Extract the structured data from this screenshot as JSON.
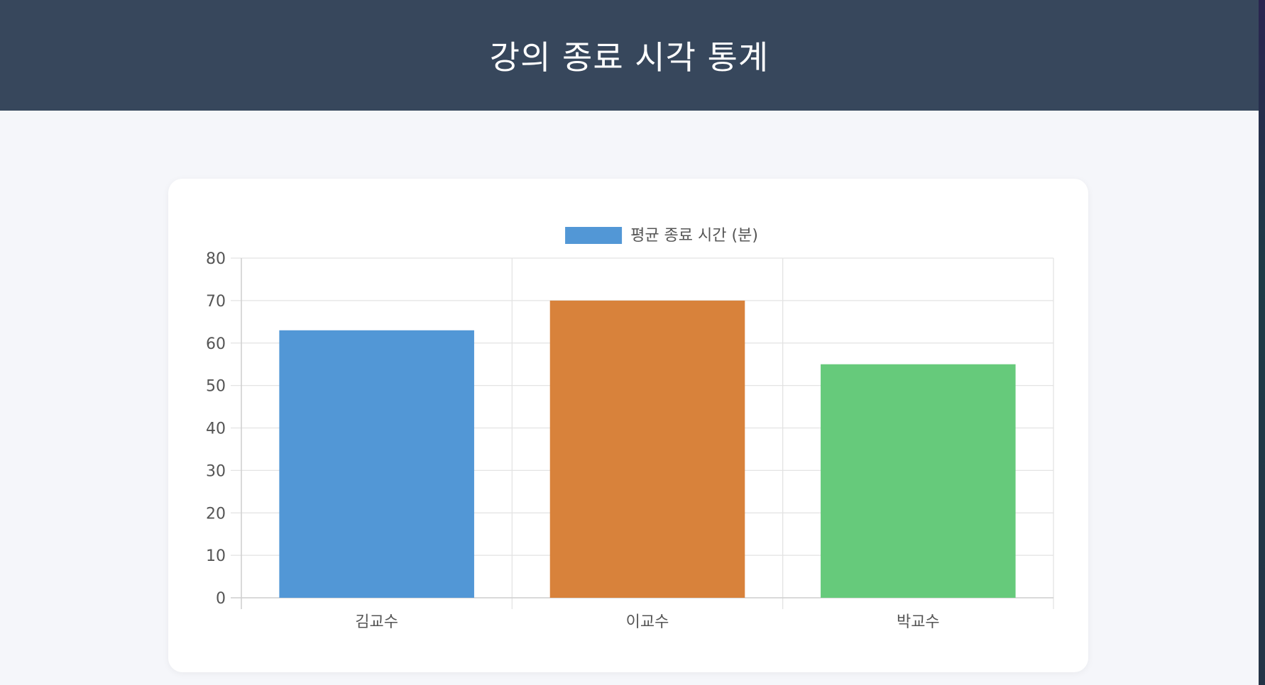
{
  "header": {
    "title": "강의 종료 시각 통계"
  },
  "chart_data": {
    "type": "bar",
    "categories": [
      "김교수",
      "이교수",
      "박교수"
    ],
    "series": [
      {
        "name": "평균 종료 시간 (분)",
        "values": [
          63,
          70,
          55
        ]
      }
    ],
    "bar_colors": [
      "#5297d6",
      "#d8823b",
      "#66ca7b"
    ],
    "legend_color": "#5297d6",
    "ylim": [
      0,
      80
    ],
    "yticks": [
      0,
      10,
      20,
      30,
      40,
      50,
      60,
      70,
      80
    ],
    "grid": true,
    "legend_position": "top-center"
  }
}
